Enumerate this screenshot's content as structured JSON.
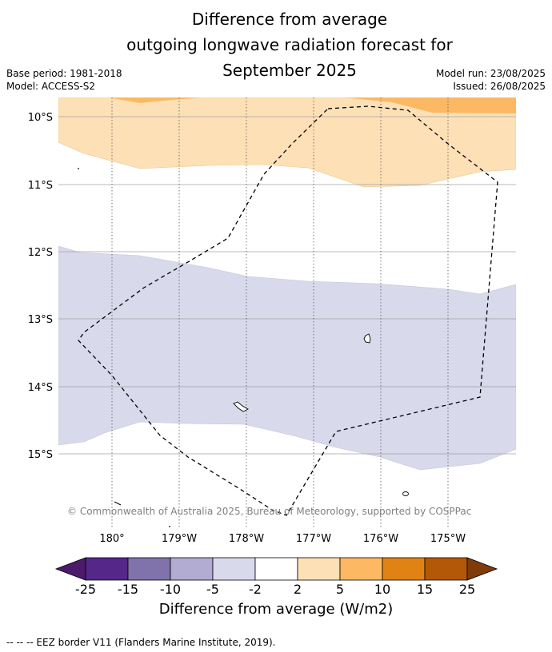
{
  "header": {
    "title_lines": [
      "Difference from average",
      "outgoing longwave radiation forecast for",
      "September 2025"
    ],
    "base_period": "Base period: 1981-2018",
    "model": "Model: ACCESS-S2",
    "model_run": "Model run: 23/08/2025",
    "issued": "Issued: 26/08/2025"
  },
  "map": {
    "lat_labels": [
      "10°S",
      "11°S",
      "12°S",
      "13°S",
      "14°S",
      "15°S"
    ],
    "lon_labels": [
      "180°",
      "179°W",
      "178°W",
      "177°W",
      "176°W",
      "175°W"
    ],
    "copyright": "© Commonwealth of Australia 2025, Bureau of Meteorology, supported by COSPPac",
    "colors": {
      "orange_dark": "#fdb863",
      "orange_light": "#fee0b6",
      "purple_light": "#d8daeb"
    }
  },
  "colorbar": {
    "ticks": [
      "-25",
      "-15",
      "-10",
      "-5",
      "-2",
      "2",
      "5",
      "10",
      "15",
      "25"
    ],
    "colors": [
      "#4b1a6b",
      "#542788",
      "#8073ac",
      "#b2abd2",
      "#d8daeb",
      "#ffffff",
      "#fee0b6",
      "#fdb863",
      "#e08214",
      "#b35806",
      "#7f3b08"
    ],
    "label": "Difference from average (W/m2)"
  },
  "footer": {
    "legend": "--  --  -- EEZ border V11 (Flanders Marine Institute, 2019)."
  }
}
